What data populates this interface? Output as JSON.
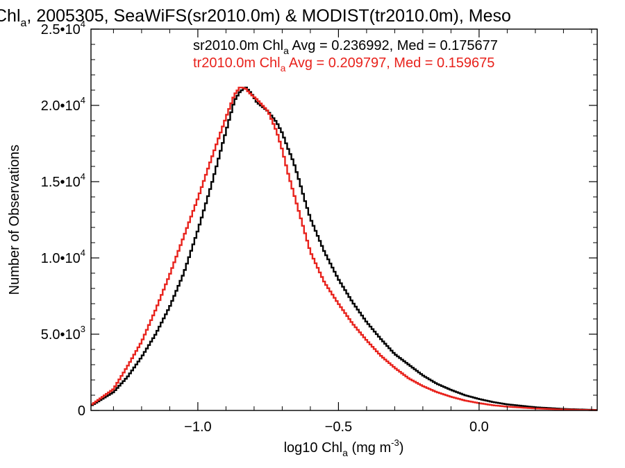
{
  "colors": {
    "series_black": "#000000",
    "series_red": "#e8221c",
    "axis": "#000000"
  },
  "chart_data": {
    "type": "line",
    "title": {
      "main": "Chl",
      "sub": "a",
      "rest": ", 2005305, SeaWiFS(sr2010.0m) & MODIST(tr2010.0m), Meso"
    },
    "xlabel": {
      "main": "log10 Chl",
      "sub": "a",
      "rest": " (mg m",
      "sup": "-3",
      "end": ")"
    },
    "ylabel": "Number of Observations",
    "xlim": [
      -1.38,
      0.42
    ],
    "ylim": [
      0,
      25000
    ],
    "x_ticks": [
      {
        "v": -1.0,
        "label": "−1.0"
      },
      {
        "v": -0.5,
        "label": "−0.5"
      },
      {
        "v": 0.0,
        "label": "0.0"
      }
    ],
    "y_ticks": [
      {
        "v": 0,
        "m": "0",
        "e": ""
      },
      {
        "v": 5000,
        "m": "5.0•10",
        "e": "3"
      },
      {
        "v": 10000,
        "m": "1.0•10",
        "e": "4"
      },
      {
        "v": 15000,
        "m": "1.5•10",
        "e": "4"
      },
      {
        "v": 20000,
        "m": "2.0•10",
        "e": "4"
      },
      {
        "v": 25000,
        "m": "2.5•10",
        "e": "4"
      }
    ],
    "grid": false,
    "legend": [
      {
        "pre": "sr2010.0m Chl",
        "sub": "a",
        "post": " Avg = 0.236992, Med = 0.175677",
        "color": "#000000"
      },
      {
        "pre": "tr2010.0m Chl",
        "sub": "a",
        "post": " Avg = 0.209797, Med = 0.159675",
        "color": "#e8221c"
      }
    ],
    "series": [
      {
        "color": "#000000",
        "x": [
          -1.38,
          -1.3,
          -1.25,
          -1.2,
          -1.15,
          -1.1,
          -1.05,
          -1.0,
          -0.95,
          -0.9,
          -0.87,
          -0.85,
          -0.83,
          -0.81,
          -0.79,
          -0.77,
          -0.75,
          -0.72,
          -0.7,
          -0.68,
          -0.66,
          -0.64,
          -0.62,
          -0.6,
          -0.55,
          -0.5,
          -0.45,
          -0.4,
          -0.35,
          -0.3,
          -0.25,
          -0.2,
          -0.15,
          -0.1,
          -0.05,
          0.0,
          0.05,
          0.1,
          0.2,
          0.3,
          0.42
        ],
        "y": [
          300,
          1200,
          2200,
          3500,
          5000,
          6800,
          9000,
          11800,
          14900,
          18300,
          20300,
          20900,
          21200,
          20800,
          20200,
          19900,
          19600,
          18900,
          18200,
          17200,
          16300,
          15100,
          13800,
          12600,
          10400,
          8600,
          7100,
          5800,
          4700,
          3700,
          3000,
          2300,
          1750,
          1350,
          1000,
          750,
          550,
          400,
          210,
          100,
          30
        ]
      },
      {
        "color": "#e8221c",
        "x": [
          -1.38,
          -1.3,
          -1.25,
          -1.2,
          -1.15,
          -1.1,
          -1.05,
          -1.0,
          -0.95,
          -0.9,
          -0.87,
          -0.85,
          -0.83,
          -0.81,
          -0.79,
          -0.77,
          -0.75,
          -0.72,
          -0.7,
          -0.68,
          -0.66,
          -0.64,
          -0.62,
          -0.6,
          -0.55,
          -0.5,
          -0.45,
          -0.4,
          -0.35,
          -0.3,
          -0.25,
          -0.2,
          -0.15,
          -0.1,
          -0.05,
          0.0,
          0.05,
          0.1,
          0.2,
          0.3,
          0.42
        ],
        "y": [
          350,
          1400,
          2900,
          4500,
          6600,
          8900,
          11400,
          13900,
          16600,
          19200,
          20700,
          21200,
          21100,
          20700,
          20400,
          20000,
          19600,
          18300,
          17100,
          15600,
          14300,
          13000,
          11700,
          10400,
          8400,
          7000,
          5700,
          4600,
          3600,
          2800,
          2100,
          1600,
          1200,
          900,
          650,
          480,
          340,
          250,
          130,
          60,
          20
        ]
      }
    ]
  }
}
